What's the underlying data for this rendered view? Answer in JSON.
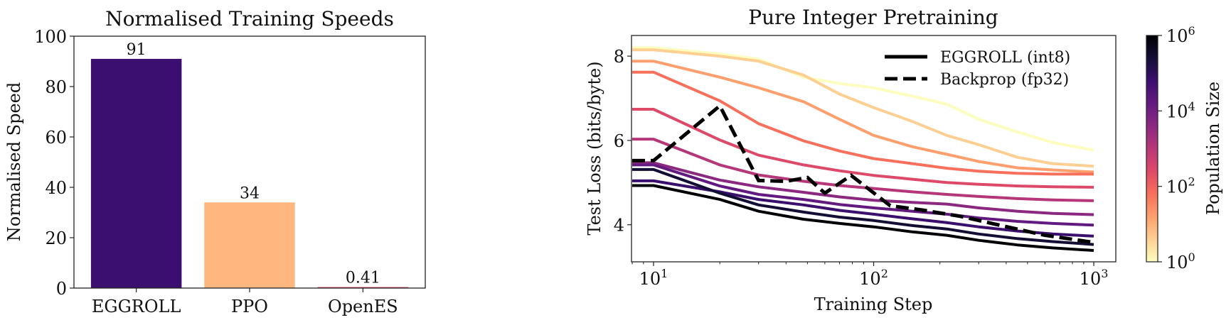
{
  "chart_data": [
    {
      "type": "bar",
      "title": "Normalised Training Speeds",
      "xlabel": "",
      "ylabel": "Normalised Speed",
      "categories": [
        "EGGROLL",
        "PPO",
        "OpenES"
      ],
      "values": [
        91,
        34,
        0.41
      ],
      "data_labels": [
        "91",
        "34",
        "0.41"
      ],
      "colors": [
        "#3b0f70",
        "#feb77e",
        "#de4968"
      ],
      "ylim": [
        0,
        100
      ],
      "yticks": [
        0,
        20,
        40,
        60,
        80,
        100
      ],
      "ytick_labels": [
        "0",
        "20",
        "40",
        "60",
        "80",
        "100"
      ],
      "grid": false
    },
    {
      "type": "line",
      "title": "Pure Integer Pretraining",
      "xlabel": "Training Step",
      "ylabel": "Test Loss (bits/byte)",
      "xscale": "log",
      "xlim": [
        7.94,
        1259
      ],
      "ylim": [
        3.12,
        8.49
      ],
      "xticks": [
        {
          "value": 10,
          "base": "10",
          "exp": "1"
        },
        {
          "value": 100,
          "base": "10",
          "exp": "2"
        },
        {
          "value": 1000,
          "base": "10",
          "exp": "3"
        }
      ],
      "yticks": [
        4,
        6,
        8
      ],
      "ytick_labels": [
        "4",
        "6",
        "8"
      ],
      "grid": false,
      "legend": {
        "position": "top-right",
        "entries": [
          {
            "label": "EGGROLL (int8)",
            "style": "solid",
            "color": "#000000"
          },
          {
            "label": "Backprop (fp32)",
            "style": "dashed",
            "color": "#000000"
          }
        ]
      },
      "colorbar": {
        "label": "Population Size",
        "scale": "log",
        "range": [
          1,
          1000000
        ],
        "colormap": "magma_r",
        "ticks": [
          {
            "value": 1,
            "base": "10",
            "exp": "0"
          },
          {
            "value": 100,
            "base": "10",
            "exp": "2"
          },
          {
            "value": 10000,
            "base": "10",
            "exp": "4"
          },
          {
            "value": 1000000,
            "base": "10",
            "exp": "6"
          }
        ]
      },
      "eggroll_x": [
        8,
        10,
        20,
        30,
        48,
        70,
        100,
        150,
        215,
        300,
        450,
        650,
        1000
      ],
      "series": [
        {
          "population": 1,
          "style": "solid",
          "y": [
            8.2,
            8.2,
            8.05,
            7.93,
            7.5,
            7.35,
            7.25,
            7.05,
            6.86,
            6.5,
            6.2,
            5.95,
            5.77
          ]
        },
        {
          "population": 4,
          "style": "solid",
          "y": [
            8.15,
            8.15,
            8.0,
            7.88,
            7.55,
            7.1,
            6.78,
            6.45,
            6.12,
            5.9,
            5.6,
            5.45,
            5.39
          ]
        },
        {
          "population": 16,
          "style": "solid",
          "y": [
            7.88,
            7.88,
            7.5,
            7.25,
            6.92,
            6.5,
            6.12,
            5.85,
            5.67,
            5.5,
            5.35,
            5.3,
            5.25
          ]
        },
        {
          "population": 64,
          "style": "solid",
          "y": [
            7.62,
            7.62,
            6.94,
            6.4,
            5.99,
            5.75,
            5.57,
            5.45,
            5.34,
            5.27,
            5.22,
            5.2,
            5.2
          ]
        },
        {
          "population": 256,
          "style": "solid",
          "y": [
            6.74,
            6.74,
            6.01,
            5.65,
            5.42,
            5.28,
            5.17,
            5.08,
            5.0,
            4.96,
            4.92,
            4.9,
            4.89
          ]
        },
        {
          "population": 1024,
          "style": "solid",
          "y": [
            6.03,
            6.03,
            5.42,
            5.18,
            5.03,
            4.93,
            4.86,
            4.78,
            4.72,
            4.67,
            4.62,
            4.59,
            4.57
          ]
        },
        {
          "population": 4096,
          "style": "solid",
          "y": [
            5.47,
            5.47,
            5.06,
            4.9,
            4.77,
            4.66,
            4.58,
            4.53,
            4.49,
            4.4,
            4.32,
            4.27,
            4.24
          ]
        },
        {
          "population": 16384,
          "style": "solid",
          "y": [
            5.42,
            5.42,
            4.92,
            4.72,
            4.6,
            4.48,
            4.4,
            4.32,
            4.25,
            4.16,
            4.08,
            4.03,
            3.99
          ]
        },
        {
          "population": 65536,
          "style": "solid",
          "y": [
            5.04,
            5.04,
            4.78,
            4.6,
            4.47,
            4.34,
            4.25,
            4.14,
            4.05,
            3.95,
            3.85,
            3.78,
            3.73
          ]
        },
        {
          "population": 262144,
          "style": "solid",
          "y": [
            5.31,
            5.31,
            4.75,
            4.47,
            4.3,
            4.18,
            4.1,
            3.98,
            3.9,
            3.78,
            3.67,
            3.6,
            3.53
          ]
        },
        {
          "population": 1048576,
          "style": "solid",
          "y": [
            4.93,
            4.93,
            4.6,
            4.32,
            4.13,
            4.03,
            3.95,
            3.83,
            3.75,
            3.63,
            3.52,
            3.45,
            3.39
          ]
        }
      ],
      "backprop": {
        "style": "dashed",
        "color": "#000000",
        "x": [
          8,
          10,
          20,
          30,
          40,
          50,
          60,
          79,
          119,
          165,
          247,
          380,
          600,
          1000
        ],
        "y": [
          5.52,
          5.52,
          6.82,
          5.05,
          5.03,
          5.12,
          4.75,
          5.17,
          4.45,
          4.35,
          4.2,
          3.98,
          3.75,
          3.58
        ]
      }
    }
  ]
}
